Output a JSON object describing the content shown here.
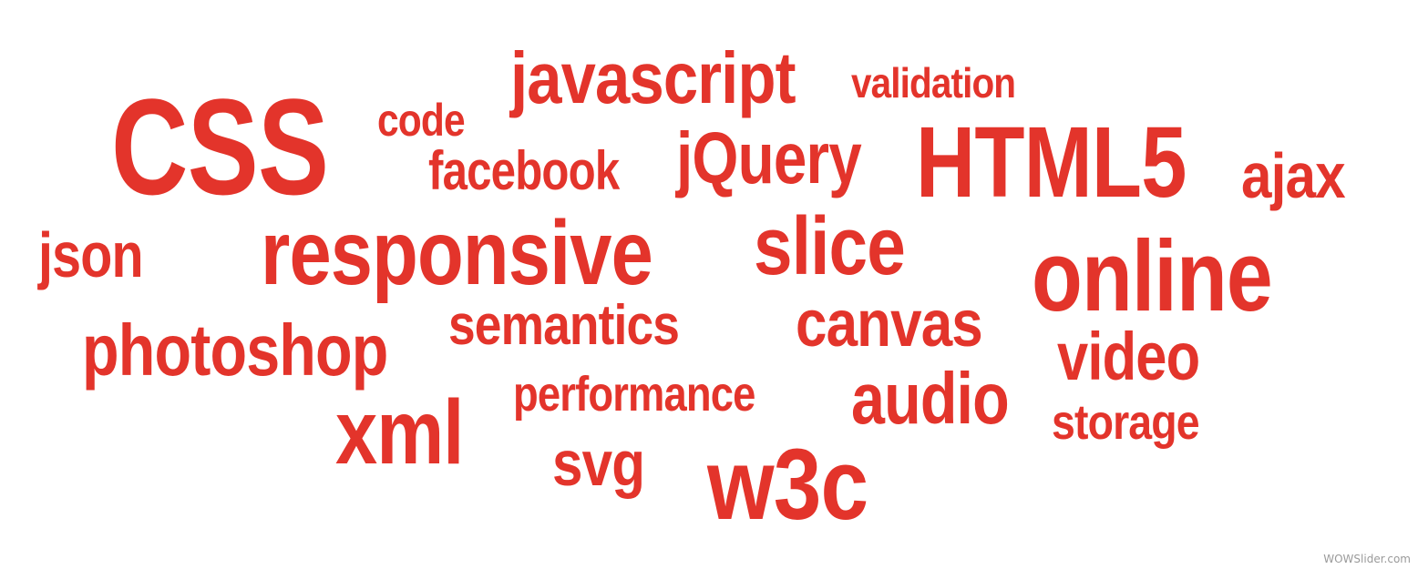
{
  "cloud": {
    "color": "#e3342b",
    "words": {
      "css": "CSS",
      "code": "code",
      "javascript": "javascript",
      "validation": "validation",
      "facebook": "facebook",
      "jquery": "jQuery",
      "html5": "HTML5",
      "ajax": "ajax",
      "json": "json",
      "responsive": "responsive",
      "slice": "slice",
      "online": "online",
      "photoshop": "photoshop",
      "semantics": "semantics",
      "canvas": "canvas",
      "video": "video",
      "performance": "performance",
      "audio": "audio",
      "storage": "storage",
      "xml": "xml",
      "svg": "svg",
      "w3c": "w3c"
    }
  },
  "watermark": {
    "text": "WOWSlider.com"
  }
}
